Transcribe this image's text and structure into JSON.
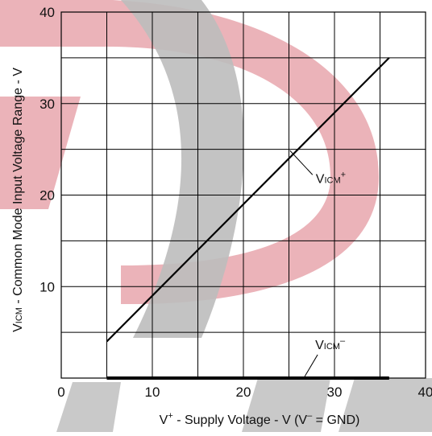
{
  "chart_data": {
    "type": "line",
    "x_ticks": [
      "0",
      "10",
      "20",
      "30",
      "40"
    ],
    "y_ticks": [
      "10",
      "20",
      "30",
      "40"
    ],
    "xlim": [
      0,
      40
    ],
    "ylim": [
      0,
      40
    ],
    "grid": true,
    "xlabel": {
      "prefix": "V",
      "prefix_sup": "+",
      "main": " - Supply Voltage - V (V",
      "sup": "–",
      "suffix": " = GND)"
    },
    "ylabel": {
      "prefix": "V",
      "sub": "ICM",
      "main": " - Common Mode Input Voltage Range - V"
    },
    "series": [
      {
        "name": {
          "base": "V",
          "sub": "ICM",
          "sup": "+"
        },
        "x": [
          5,
          36
        ],
        "y": [
          4,
          35
        ],
        "color": "#000000",
        "label_anchor": [
          26,
          23.8
        ]
      },
      {
        "name": {
          "base": "V",
          "sub": "ICM",
          "sup": "–"
        },
        "x": [
          5,
          36
        ],
        "y": [
          0,
          0
        ],
        "color": "#000000",
        "label_anchor": [
          27,
          1.5
        ]
      }
    ],
    "watermark": {
      "colors": [
        "#e8a6ad",
        "#bcbcbc"
      ]
    }
  }
}
